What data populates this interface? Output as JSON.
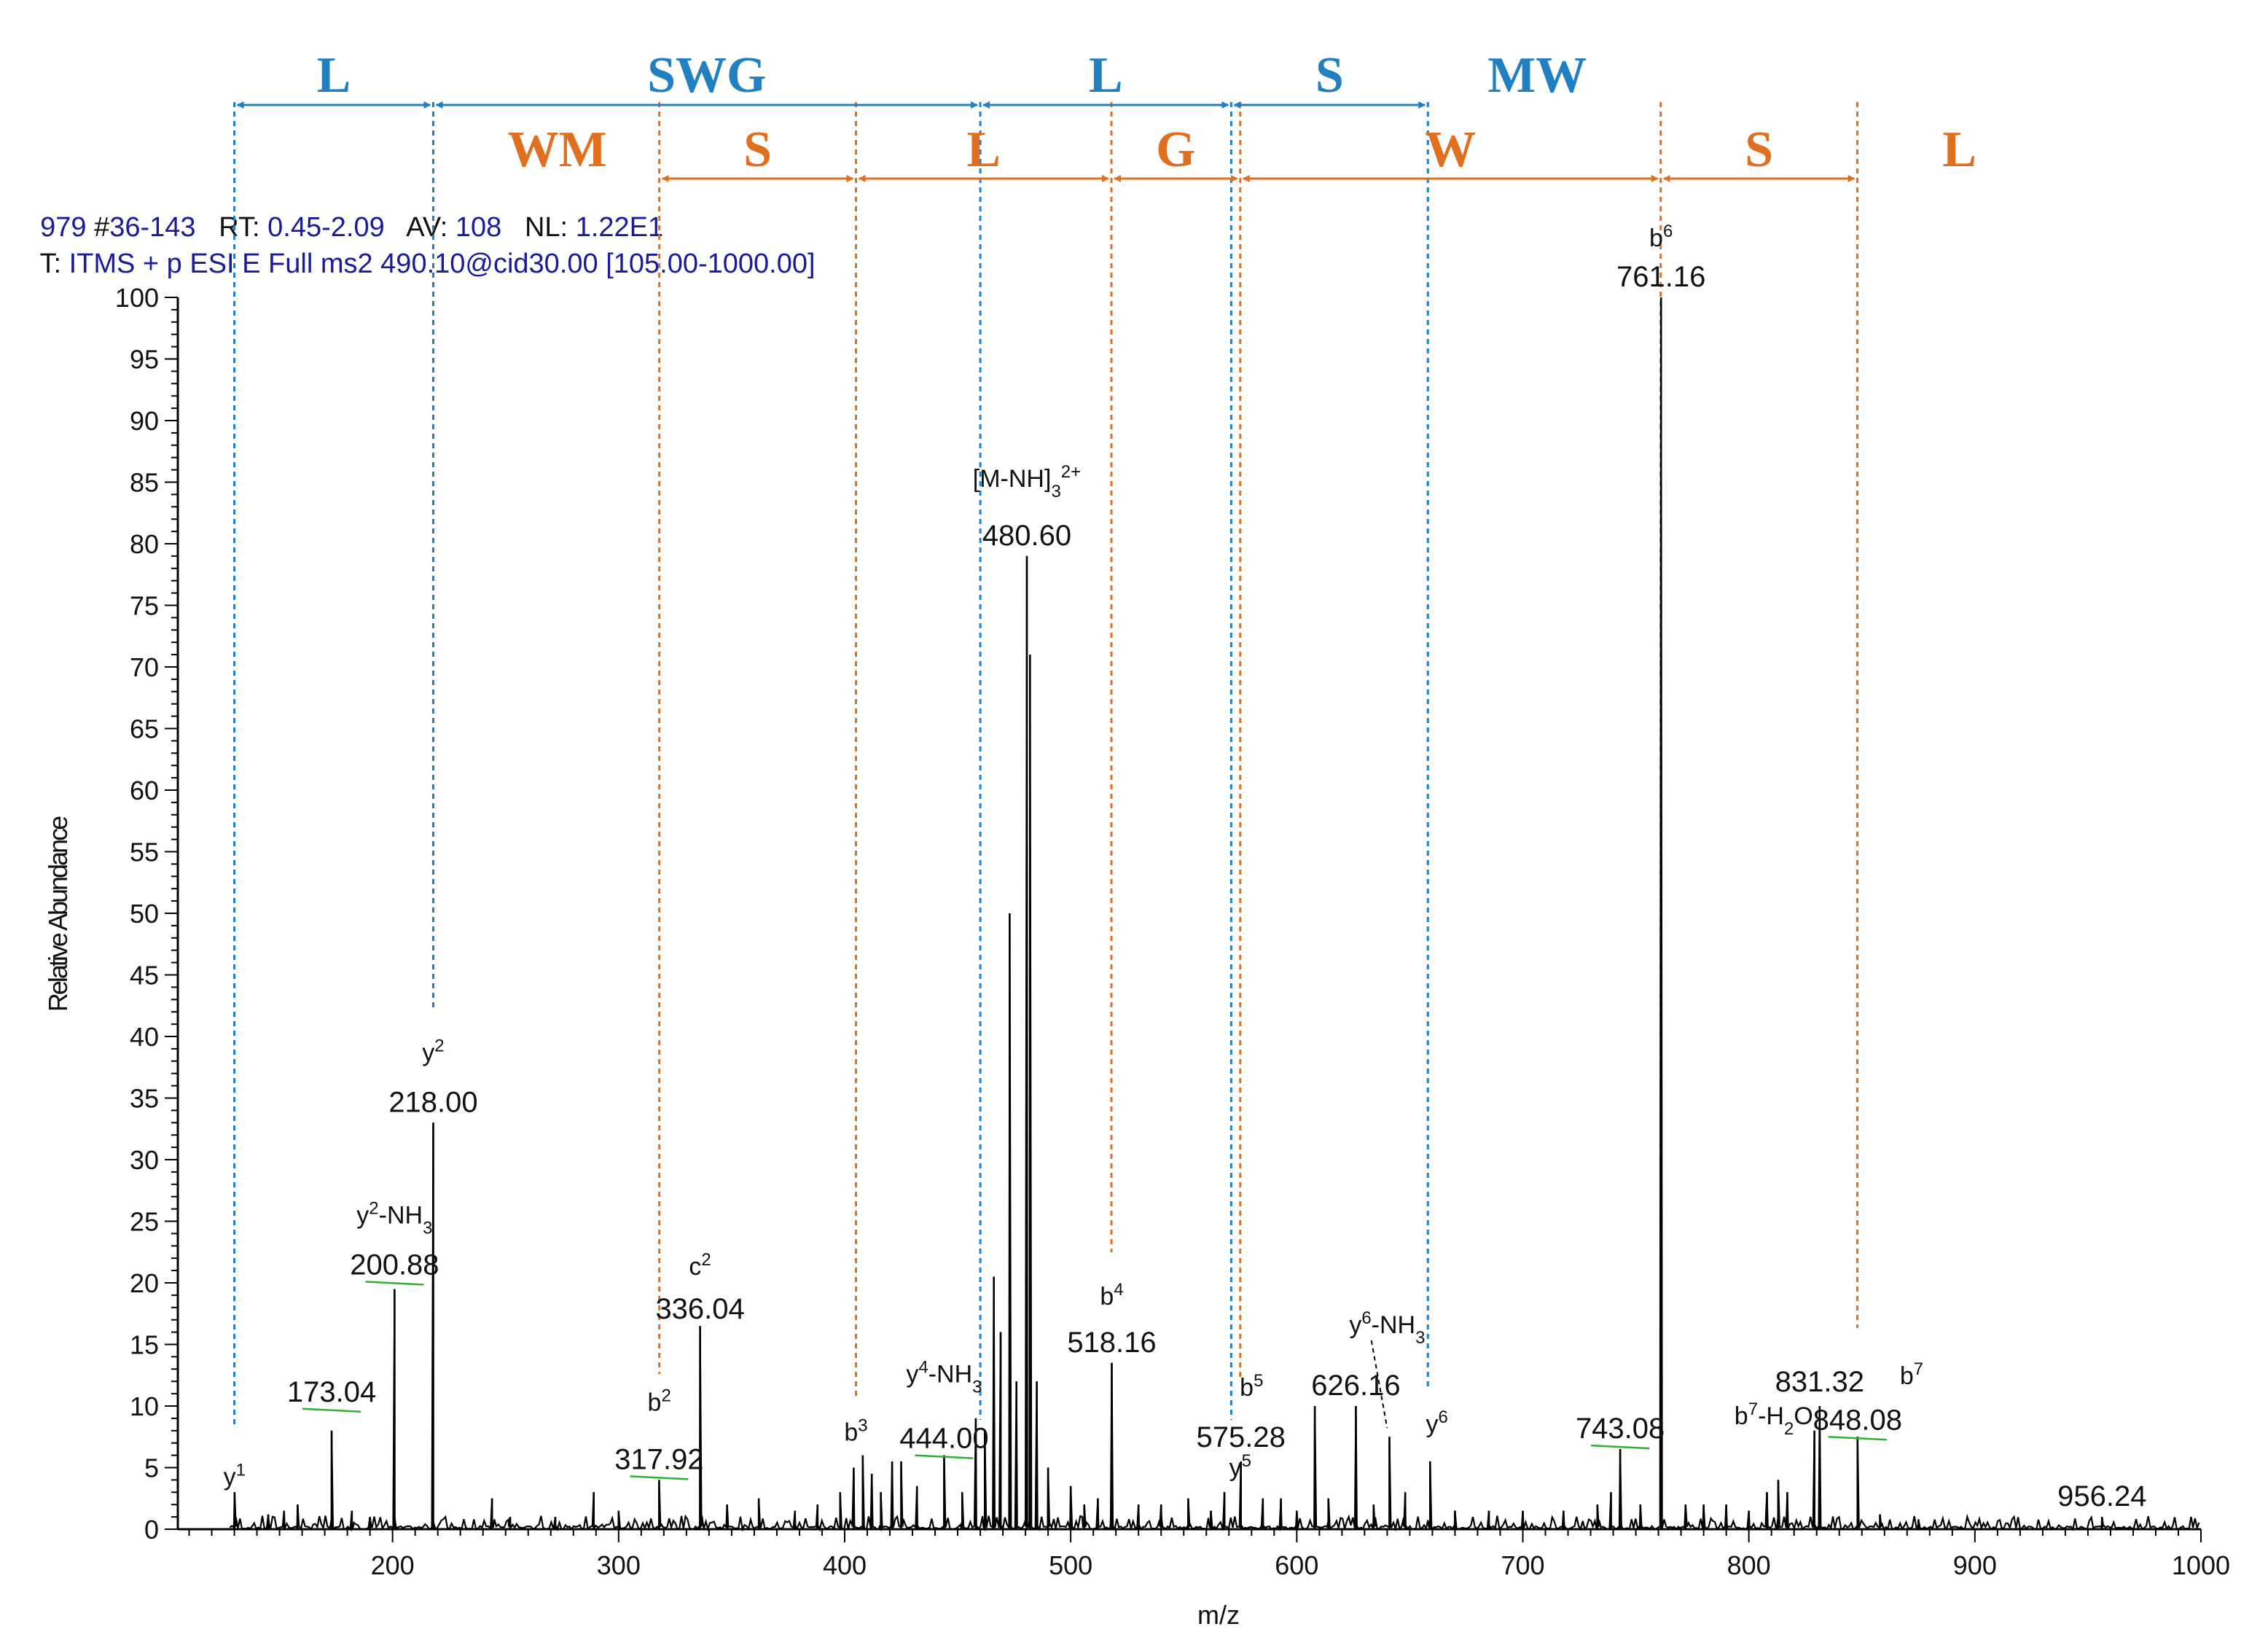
{
  "header": {
    "scan": "979",
    "scan_range_key": "#",
    "scan_range": "36-143",
    "rt_key": "RT:",
    "rt": "0.45-2.09",
    "av_key": "AV:",
    "av": "108",
    "nl_key": "NL:",
    "nl": "1.22E1",
    "filter_key": "T:",
    "filter": "ITMS + p ESI E Full ms2 490.10@cid30.00 [105.00-1000.00]"
  },
  "colors": {
    "blue": "#2080c0",
    "orange": "#e07020",
    "trace": "#000000",
    "green": "#30b030"
  },
  "sequence_blue": [
    {
      "label": "L",
      "from": 130,
      "to": 218
    },
    {
      "label": "SWG",
      "from": 218,
      "to": 460
    },
    {
      "label": "L",
      "from": 460,
      "to": 571
    },
    {
      "label": "S",
      "from": 571,
      "to": 658
    },
    {
      "label": "MW",
      "from": 658,
      "to": null
    }
  ],
  "sequence_orange": [
    {
      "label": "WM",
      "from": null,
      "to": 318
    },
    {
      "label": "S",
      "from": 318,
      "to": 405
    },
    {
      "label": "L",
      "from": 405,
      "to": 518
    },
    {
      "label": "G",
      "from": 518,
      "to": 575
    },
    {
      "label": "W",
      "from": 575,
      "to": 761
    },
    {
      "label": "S",
      "from": 761,
      "to": 848
    },
    {
      "label": "L",
      "from": 848,
      "to": null
    }
  ],
  "blue_lines": [
    130,
    218,
    460,
    571,
    658
  ],
  "orange_lines": [
    318,
    405,
    518,
    575,
    761,
    848
  ],
  "chart_data": {
    "type": "line",
    "title": "",
    "xlabel": "m/z",
    "ylabel": "Relative Abundance",
    "xlim": [
      105,
      1000
    ],
    "ylim": [
      0,
      100
    ],
    "xticks": [
      200,
      300,
      400,
      500,
      600,
      700,
      800,
      900,
      1000
    ],
    "yticks": [
      0,
      5,
      10,
      15,
      20,
      25,
      30,
      35,
      40,
      45,
      50,
      55,
      60,
      65,
      70,
      75,
      80,
      85,
      90,
      95,
      100
    ],
    "peaks": [
      {
        "mz": 130.1,
        "y": 3
      },
      {
        "mz": 145,
        "y": 1.2
      },
      {
        "mz": 152,
        "y": 1.5
      },
      {
        "mz": 158,
        "y": 2
      },
      {
        "mz": 173.04,
        "y": 8
      },
      {
        "mz": 182,
        "y": 1.5
      },
      {
        "mz": 190,
        "y": 1
      },
      {
        "mz": 200.88,
        "y": 19.5
      },
      {
        "mz": 218.0,
        "y": 33
      },
      {
        "mz": 244,
        "y": 2.5
      },
      {
        "mz": 252,
        "y": 1
      },
      {
        "mz": 272,
        "y": 1
      },
      {
        "mz": 289,
        "y": 3
      },
      {
        "mz": 300,
        "y": 1.5
      },
      {
        "mz": 317.92,
        "y": 4
      },
      {
        "mz": 336.04,
        "y": 16.5
      },
      {
        "mz": 348,
        "y": 2
      },
      {
        "mz": 362,
        "y": 2.5
      },
      {
        "mz": 378,
        "y": 1.5
      },
      {
        "mz": 388,
        "y": 2
      },
      {
        "mz": 398,
        "y": 3
      },
      {
        "mz": 404,
        "y": 5
      },
      {
        "mz": 408,
        "y": 6
      },
      {
        "mz": 412,
        "y": 4.5
      },
      {
        "mz": 416,
        "y": 3
      },
      {
        "mz": 421,
        "y": 5.5
      },
      {
        "mz": 425,
        "y": 5.5
      },
      {
        "mz": 432,
        "y": 3.5
      },
      {
        "mz": 444.0,
        "y": 6
      },
      {
        "mz": 452,
        "y": 3
      },
      {
        "mz": 458,
        "y": 9
      },
      {
        "mz": 462,
        "y": 8
      },
      {
        "mz": 466,
        "y": 20.5
      },
      {
        "mz": 469,
        "y": 16
      },
      {
        "mz": 473,
        "y": 50
      },
      {
        "mz": 476,
        "y": 12
      },
      {
        "mz": 480.6,
        "y": 79
      },
      {
        "mz": 482,
        "y": 71
      },
      {
        "mz": 485,
        "y": 12
      },
      {
        "mz": 490,
        "y": 5
      },
      {
        "mz": 500,
        "y": 3.5
      },
      {
        "mz": 506,
        "y": 2
      },
      {
        "mz": 512,
        "y": 2.5
      },
      {
        "mz": 518.16,
        "y": 13.5
      },
      {
        "mz": 530,
        "y": 2
      },
      {
        "mz": 540,
        "y": 2
      },
      {
        "mz": 552,
        "y": 2.5
      },
      {
        "mz": 562,
        "y": 1.5
      },
      {
        "mz": 568,
        "y": 3
      },
      {
        "mz": 575.28,
        "y": 5.5
      },
      {
        "mz": 585,
        "y": 2.5
      },
      {
        "mz": 593,
        "y": 2.5
      },
      {
        "mz": 600,
        "y": 1.5
      },
      {
        "mz": 608,
        "y": 10
      },
      {
        "mz": 614,
        "y": 2.5
      },
      {
        "mz": 626.16,
        "y": 10
      },
      {
        "mz": 634,
        "y": 2
      },
      {
        "mz": 641,
        "y": 7.5
      },
      {
        "mz": 648,
        "y": 3
      },
      {
        "mz": 659,
        "y": 5.5
      },
      {
        "mz": 670,
        "y": 1.5
      },
      {
        "mz": 685,
        "y": 1.5
      },
      {
        "mz": 700,
        "y": 1.5
      },
      {
        "mz": 718,
        "y": 1.5
      },
      {
        "mz": 733,
        "y": 2
      },
      {
        "mz": 739,
        "y": 3
      },
      {
        "mz": 743.08,
        "y": 6.5
      },
      {
        "mz": 752,
        "y": 2
      },
      {
        "mz": 761.16,
        "y": 100
      },
      {
        "mz": 772,
        "y": 2
      },
      {
        "mz": 780,
        "y": 2
      },
      {
        "mz": 790,
        "y": 2
      },
      {
        "mz": 800,
        "y": 1.5
      },
      {
        "mz": 808,
        "y": 3
      },
      {
        "mz": 813,
        "y": 4
      },
      {
        "mz": 817,
        "y": 3
      },
      {
        "mz": 829,
        "y": 8
      },
      {
        "mz": 831.32,
        "y": 10
      },
      {
        "mz": 848.08,
        "y": 7.5
      },
      {
        "mz": 858,
        "y": 1.2
      },
      {
        "mz": 875,
        "y": 0.8
      },
      {
        "mz": 956.24,
        "y": 1
      }
    ],
    "annotations": [
      {
        "text": "y",
        "sup": "1",
        "mz": 130.1,
        "y": 3,
        "dy": -10
      },
      {
        "text": "173.04",
        "mz": 173.04,
        "y": 8,
        "dy": -40
      },
      {
        "text": "y",
        "sup": "2",
        "tail": "-NH",
        "sub": "3",
        "mz": 200.88,
        "y": 19.5,
        "dy": -90
      },
      {
        "text": "200.88",
        "mz": 200.88,
        "y": 19.5,
        "dy": -20
      },
      {
        "text": "y",
        "sup": "2",
        "mz": 218.0,
        "y": 33,
        "dy": -85
      },
      {
        "text": "218.00",
        "mz": 218.0,
        "y": 33,
        "dy": -15
      },
      {
        "text": "b",
        "sup": "2",
        "mz": 318,
        "y": 4,
        "dy": -95
      },
      {
        "text": "317.92",
        "mz": 317.92,
        "y": 4,
        "dy": -15
      },
      {
        "text": "c",
        "sup": "2",
        "mz": 336.04,
        "y": 16.5,
        "dy": -70
      },
      {
        "text": "336.04",
        "mz": 336.04,
        "y": 16.5,
        "dy": -10
      },
      {
        "text": "b",
        "sup": "3",
        "mz": 405,
        "y": 6,
        "dy": -20
      },
      {
        "text": "y",
        "sup": "4",
        "tail": "-NH",
        "sub": "3",
        "mz": 444,
        "y": 6,
        "dy": -100
      },
      {
        "text": "444.00",
        "mz": 444.0,
        "y": 6,
        "dy": -10
      },
      {
        "text": "[M-NH",
        "sub": "3",
        "tail": "]",
        "sup2": "2+",
        "mz": 480.6,
        "y": 79,
        "dy": -95
      },
      {
        "text": "480.60",
        "mz": 480.6,
        "y": 79,
        "dy": -15
      },
      {
        "text": "b",
        "sup": "4",
        "mz": 518.16,
        "y": 13.5,
        "dy": -80
      },
      {
        "text": "518.16",
        "mz": 518.16,
        "y": 13.5,
        "dy": -15
      },
      {
        "text": "b",
        "sup": "5",
        "mz": 580,
        "y": 5.5,
        "dy": -90
      },
      {
        "text": "575.28",
        "mz": 575.28,
        "y": 5.5,
        "dy": -20
      },
      {
        "text": "y",
        "sup": "5",
        "mz": 575,
        "y": 5.5,
        "dy": 20
      },
      {
        "text": "y",
        "sup": "6",
        "tail": "-NH",
        "sub": "3",
        "mz": 640,
        "y": 10,
        "dy": -100
      },
      {
        "text": "626.16",
        "mz": 626.16,
        "y": 10,
        "dy": -15
      },
      {
        "text": "y",
        "sup": "6",
        "mz": 662,
        "y": 5.5,
        "dy": -40
      },
      {
        "text": "743.08",
        "mz": 743.08,
        "y": 6.5,
        "dy": -15
      },
      {
        "text": "b",
        "sup": "6",
        "mz": 761.16,
        "y": 100,
        "dy": -70
      },
      {
        "text": "761.16",
        "mz": 761.16,
        "y": 100,
        "dy": -15
      },
      {
        "text": "831.32",
        "mz": 831.32,
        "y": 10,
        "dy": -20
      },
      {
        "text": "b",
        "sup": "7",
        "tail": "-H",
        "sub": "2",
        "tail2": "O",
        "mz": 811,
        "y": 10,
        "dy": 25
      },
      {
        "text": "b",
        "sup": "7",
        "mz": 872,
        "y": 10,
        "dy": -30
      },
      {
        "text": "848.08",
        "mz": 848.08,
        "y": 7.5,
        "dy": -10
      },
      {
        "text": "956.24",
        "mz": 956.24,
        "y": 1,
        "dy": -15
      }
    ]
  }
}
